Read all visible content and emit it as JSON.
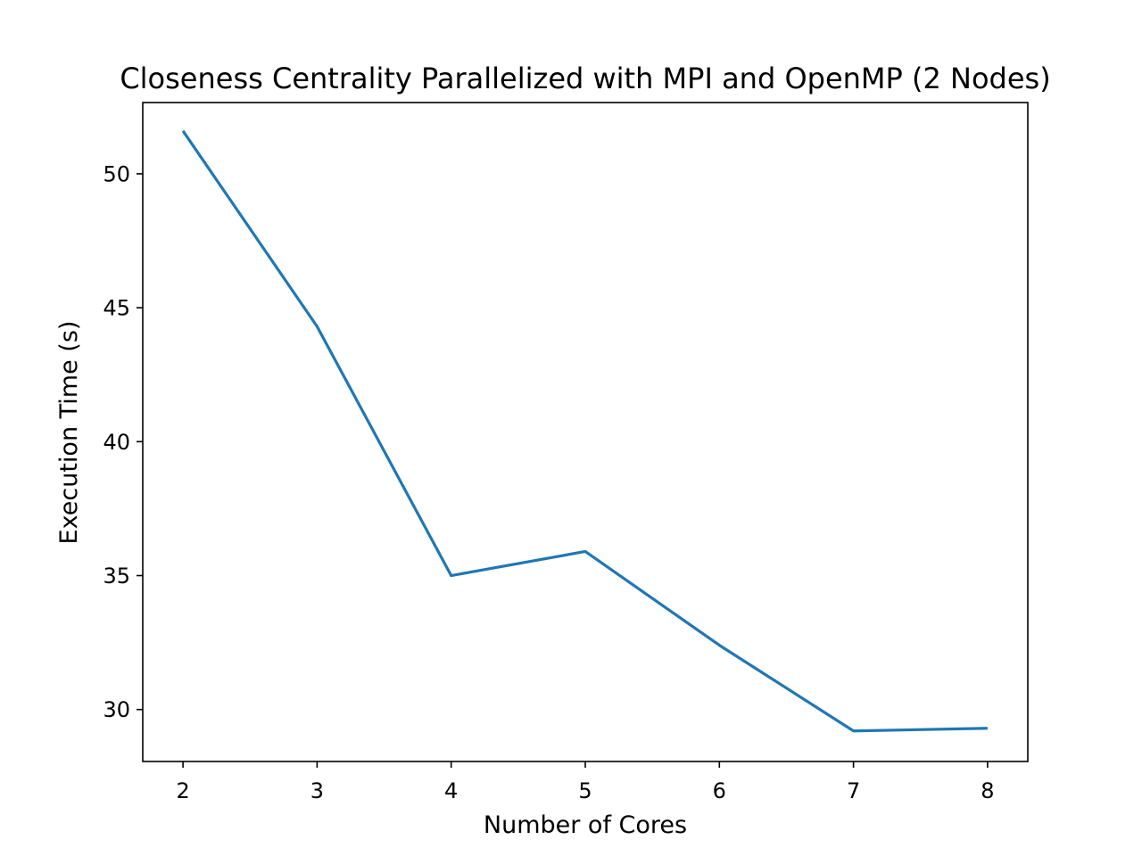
{
  "chart_data": {
    "type": "line",
    "title": "Closeness Centrality Parallelized with MPI and OpenMP (2 Nodes)",
    "xlabel": "Number of Cores",
    "ylabel": "Execution Time (s)",
    "x": [
      2,
      3,
      4,
      5,
      6,
      7,
      8
    ],
    "series": [
      {
        "values": [
          51.6,
          44.3,
          35.0,
          35.9,
          32.4,
          29.2,
          29.3
        ]
      }
    ],
    "xlim": [
      1.7,
      8.3
    ],
    "ylim": [
      28.06,
      52.66
    ],
    "xticks": [
      2,
      3,
      4,
      5,
      6,
      7,
      8
    ],
    "yticks": [
      30,
      35,
      40,
      45,
      50
    ],
    "grid": false,
    "legend": "none",
    "line_color": "#1f77b4"
  }
}
